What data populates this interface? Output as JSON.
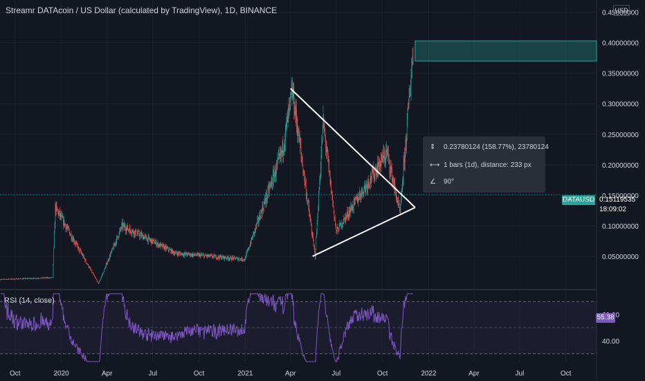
{
  "header": {
    "title": "Streamr DATAcoin / US Dollar (calculated by TradingView), 1D, BINANCE",
    "currency": "USD"
  },
  "colors": {
    "background": "#131722",
    "grid": "#1e222d",
    "axis_text": "#d1d4dc",
    "up": "#26a69a",
    "down": "#ef5350",
    "rsi_line": "#7e57c2",
    "rsi_band": "#7e57c2",
    "trendline": "#ffffff",
    "target_box": "#26a69a"
  },
  "chart_data": [
    {
      "type": "candlestick",
      "title": "Streamr DATAcoin / US Dollar (calculated by TradingView), 1D, BINANCE",
      "x_tick_labels": [
        "Oct",
        "2020",
        "Apr",
        "Jul",
        "Oct",
        "2021",
        "Apr",
        "Jul",
        "Oct",
        "2022",
        "Apr",
        "Jul",
        "Oct"
      ],
      "y_tick_labels": [
        "0.05000000",
        "0.10000000",
        "0.15000000",
        "0.20000000",
        "0.25000000",
        "0.30000000",
        "0.35000000",
        "0.40000000",
        "0.45000000"
      ],
      "y_ticks": [
        0.05,
        0.1,
        0.15,
        0.2,
        0.25,
        0.3,
        0.35,
        0.4,
        0.45
      ],
      "ylim": [
        0.0,
        0.47
      ],
      "x_range_months": [
        "2019-09",
        "2022-12"
      ],
      "key_points": [
        {
          "date": "2019-09-01",
          "price": 0.012
        },
        {
          "date": "2019-12-15",
          "price": 0.015
        },
        {
          "date": "2019-12-20",
          "price": 0.13
        },
        {
          "date": "2020-03-15",
          "price": 0.005
        },
        {
          "date": "2020-05-01",
          "price": 0.1
        },
        {
          "date": "2020-08-15",
          "price": 0.055
        },
        {
          "date": "2020-12-31",
          "price": 0.045
        },
        {
          "date": "2021-03-15",
          "price": 0.22
        },
        {
          "date": "2021-04-05",
          "price": 0.32
        },
        {
          "date": "2021-05-20",
          "price": 0.05
        },
        {
          "date": "2021-06-05",
          "price": 0.27
        },
        {
          "date": "2021-07-01",
          "price": 0.09
        },
        {
          "date": "2021-09-01",
          "price": 0.17
        },
        {
          "date": "2021-10-10",
          "price": 0.22
        },
        {
          "date": "2021-11-05",
          "price": 0.12
        },
        {
          "date": "2021-12-01",
          "price": 0.39
        }
      ],
      "current_price": {
        "symbol": "DATAUSD",
        "value": "0.15119535",
        "timer": "18:09:02"
      },
      "trendlines": [
        {
          "from": {
            "date": "2021-04-01",
            "price": 0.325
          },
          "to": {
            "date": "2021-12-05",
            "price": 0.13
          }
        },
        {
          "from": {
            "date": "2021-05-15",
            "price": 0.05
          },
          "to": {
            "date": "2021-12-05",
            "price": 0.13
          }
        }
      ],
      "target_box": {
        "date_from": "2021-12-05",
        "date_to": "2022-12-31",
        "price_low": 0.37,
        "price_high": 0.403
      },
      "measure": {
        "price_change": "0.23780124 (158.77%), 23780124",
        "bars": "1 bars (1d), distance: 233 px",
        "angle": "90°"
      }
    },
    {
      "type": "line",
      "title": "RSI (14, close)",
      "ylabel": "",
      "y_tick_labels": [
        "40.00",
        "60.00"
      ],
      "y_ticks": [
        40,
        60
      ],
      "ylim": [
        24,
        76
      ],
      "bands": [
        30,
        50,
        70
      ],
      "current_value": "55.38"
    }
  ]
}
